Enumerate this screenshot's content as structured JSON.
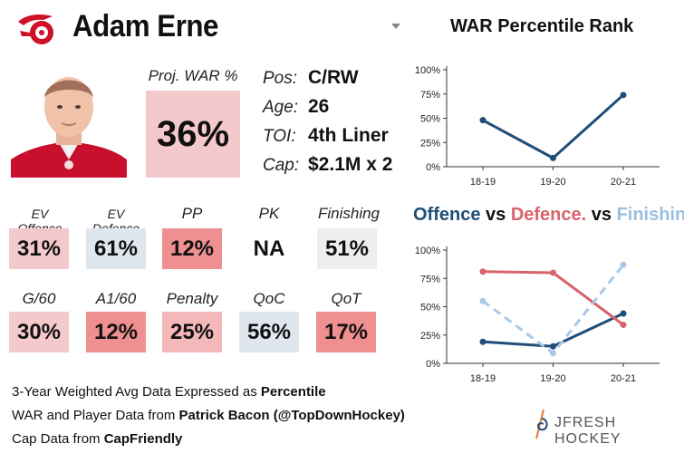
{
  "player": {
    "name": "Adam Erne",
    "war_label": "Proj. WAR %",
    "war_value": "36%",
    "info": [
      {
        "key": "Pos:",
        "value": "C/RW"
      },
      {
        "key": "Age:",
        "value": "26"
      },
      {
        "key": "TOI:",
        "value": "4th Liner"
      },
      {
        "key": "Cap:",
        "value": "$2.1M x 2"
      }
    ]
  },
  "metrics": [
    {
      "label": "EV Offence",
      "value": "31%",
      "color": "#f4c9cc"
    },
    {
      "label": "EV Defence",
      "value": "61%",
      "color": "#dfe6ee"
    },
    {
      "label": "PP",
      "value": "12%",
      "color": "#ef8f8f"
    },
    {
      "label": "PK",
      "value": "NA",
      "color": "#ffffff"
    },
    {
      "label": "Finishing",
      "value": "51%",
      "color": "#eeeeef"
    },
    {
      "label": "G/60",
      "value": "30%",
      "color": "#f4c9cc"
    },
    {
      "label": "A1/60",
      "value": "12%",
      "color": "#ef8f8f"
    },
    {
      "label": "Penalty",
      "value": "25%",
      "color": "#f4b8bb"
    },
    {
      "label": "QoC",
      "value": "56%",
      "color": "#dfe6ee"
    },
    {
      "label": "QoT",
      "value": "17%",
      "color": "#ef8f8f"
    }
  ],
  "footer": {
    "line1_prefix": "3-Year Weighted Avg Data Expressed as ",
    "line1_bold": "Percentile",
    "line2_prefix": "WAR and Player Data from ",
    "line2_bold": "Patrick Bacon (@TopDownHockey)",
    "line3_prefix": "Cap Data from ",
    "line3_bold": "CapFriendly"
  },
  "brand": "JFRESH HOCKEY",
  "chart_data": [
    {
      "type": "line",
      "title": "WAR Percentile Rank",
      "categories": [
        "18-19",
        "19-20",
        "20-21"
      ],
      "series": [
        {
          "name": "WAR",
          "values": [
            48,
            9,
            74
          ],
          "color": "#1f4e79",
          "dashed": false
        }
      ],
      "ylim": [
        0,
        100
      ],
      "yticks": [
        "0%",
        "25%",
        "50%",
        "75%",
        "100%"
      ]
    },
    {
      "type": "line",
      "title_parts": [
        {
          "text": "Offence",
          "color": "#1f4e79"
        },
        {
          "text": " vs ",
          "color": "#111111"
        },
        {
          "text": "Defence.",
          "color": "#d9626b"
        },
        {
          "text": " vs ",
          "color": "#111111"
        },
        {
          "text": "Finishing",
          "color": "#9bbfe0"
        }
      ],
      "categories": [
        "18-19",
        "19-20",
        "20-21"
      ],
      "series": [
        {
          "name": "Offence",
          "values": [
            19,
            15,
            44
          ],
          "color": "#1f4e79",
          "dashed": false
        },
        {
          "name": "Defence",
          "values": [
            81,
            80,
            34
          ],
          "color": "#d9626b",
          "dashed": false
        },
        {
          "name": "Finishing",
          "values": [
            55,
            9,
            87
          ],
          "color": "#a9c8e6",
          "dashed": true
        }
      ],
      "ylim": [
        0,
        100
      ],
      "yticks": [
        "0%",
        "25%",
        "50%",
        "75%",
        "100%"
      ]
    }
  ]
}
